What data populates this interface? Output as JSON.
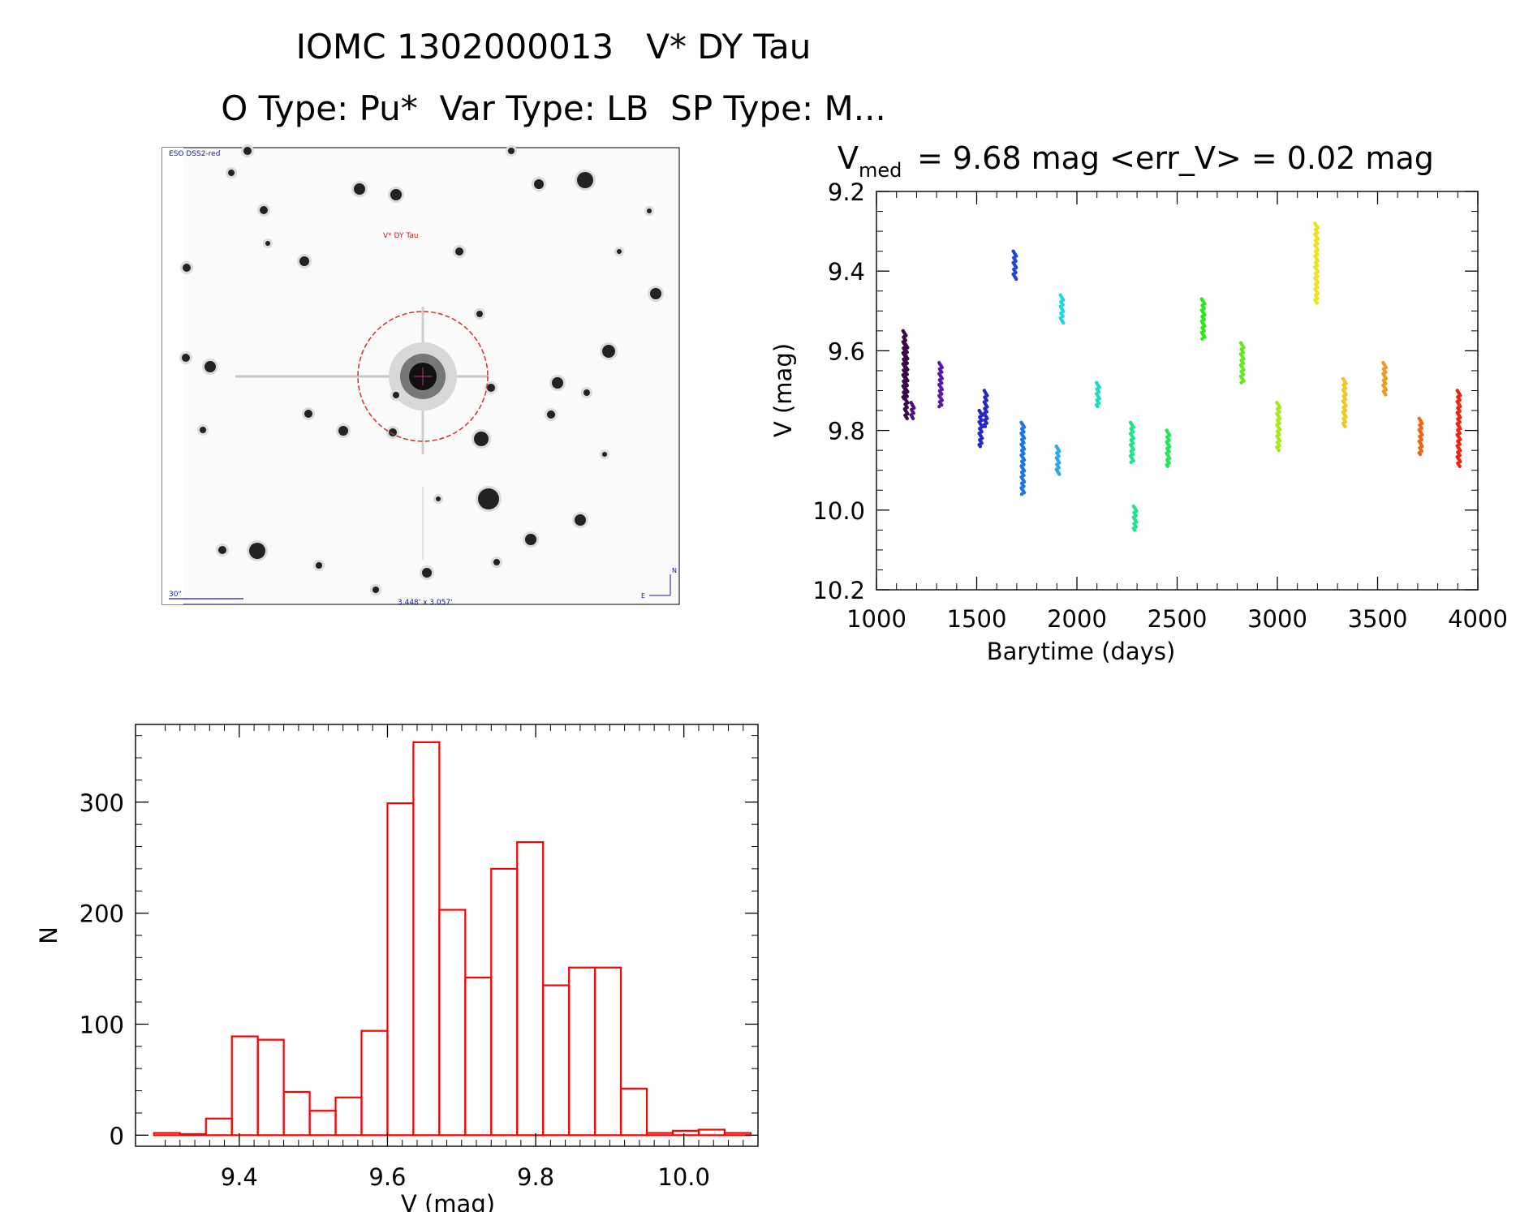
{
  "header": {
    "title": "IOMC 1302000013   V* DY Tau",
    "subtitle": "O Type: Pu*  Var Type: LB  SP Type: M..."
  },
  "image_panel": {
    "survey_label": "ESO DSS2-red",
    "target_label": "V* DY Tau",
    "scale_label": "30\"",
    "fov_label": "3.448' x 3.057'",
    "north_label": "N",
    "east_label": "E",
    "colors": {
      "circle": "#d03030",
      "labels": "#1a1a9a",
      "target_text": "#c02020"
    }
  },
  "chart_data": [
    {
      "type": "scatter",
      "title_main": "V",
      "title_sub": "med",
      "title_rest": "= 9.68 mag <err_V> = 0.02 mag",
      "xlabel": "Barytime (days)",
      "ylabel": "V (mag)",
      "xlim": [
        1000,
        4000
      ],
      "ylim": [
        10.2,
        9.2
      ],
      "y_inverted": true,
      "xticks": [
        1000,
        1500,
        2000,
        2500,
        3000,
        3500,
        4000
      ],
      "yticks": [
        "9.2",
        "9.4",
        "9.6",
        "9.8",
        "10.0",
        "10.2"
      ],
      "clusters": [
        {
          "x": 1140,
          "ymin": 9.55,
          "ymax": 9.72,
          "color": "#3a0848"
        },
        {
          "x": 1148,
          "ymin": 9.58,
          "ymax": 9.77,
          "color": "#3a0848"
        },
        {
          "x": 1180,
          "ymin": 9.73,
          "ymax": 9.77,
          "color": "#48107a"
        },
        {
          "x": 1320,
          "ymin": 9.63,
          "ymax": 9.74,
          "color": "#5a1aa0"
        },
        {
          "x": 1520,
          "ymin": 9.75,
          "ymax": 9.84,
          "color": "#2626c8"
        },
        {
          "x": 1545,
          "ymin": 9.7,
          "ymax": 9.79,
          "color": "#2626c8"
        },
        {
          "x": 1690,
          "ymin": 9.35,
          "ymax": 9.42,
          "color": "#1e46d8"
        },
        {
          "x": 1730,
          "ymin": 9.78,
          "ymax": 9.96,
          "color": "#1a78e6"
        },
        {
          "x": 1905,
          "ymin": 9.84,
          "ymax": 9.91,
          "color": "#2aa8f0"
        },
        {
          "x": 1925,
          "ymin": 9.46,
          "ymax": 9.53,
          "color": "#1ed6e6"
        },
        {
          "x": 2105,
          "ymin": 9.68,
          "ymax": 9.74,
          "color": "#20dcbe"
        },
        {
          "x": 2275,
          "ymin": 9.78,
          "ymax": 9.88,
          "color": "#1ee48c"
        },
        {
          "x": 2290,
          "ymin": 9.99,
          "ymax": 10.05,
          "color": "#1ee48c"
        },
        {
          "x": 2455,
          "ymin": 9.8,
          "ymax": 9.89,
          "color": "#1ee85a"
        },
        {
          "x": 2630,
          "ymin": 9.47,
          "ymax": 9.57,
          "color": "#28e81e"
        },
        {
          "x": 2825,
          "ymin": 9.58,
          "ymax": 9.68,
          "color": "#64e81e"
        },
        {
          "x": 3005,
          "ymin": 9.73,
          "ymax": 9.85,
          "color": "#a8e81e"
        },
        {
          "x": 3195,
          "ymin": 9.28,
          "ymax": 9.48,
          "color": "#e6e61e"
        },
        {
          "x": 3335,
          "ymin": 9.67,
          "ymax": 9.79,
          "color": "#f0c81e"
        },
        {
          "x": 3535,
          "ymin": 9.63,
          "ymax": 9.71,
          "color": "#f09a1e"
        },
        {
          "x": 3715,
          "ymin": 9.77,
          "ymax": 9.86,
          "color": "#ee6414"
        },
        {
          "x": 3905,
          "ymin": 9.7,
          "ymax": 9.89,
          "color": "#e62814"
        }
      ]
    },
    {
      "type": "histogram",
      "xlabel": "V (mag)",
      "ylabel": "N",
      "xlim": [
        9.26,
        10.1
      ],
      "ylim": [
        -10,
        370
      ],
      "xticks": [
        "9.4",
        "9.6",
        "9.8",
        "10.0"
      ],
      "yticks": [
        "0",
        "100",
        "200",
        "300"
      ],
      "bin_width": 0.035,
      "bin_start": 9.285,
      "values": [
        2,
        1,
        15,
        89,
        86,
        39,
        22,
        34,
        94,
        299,
        354,
        203,
        142,
        240,
        264,
        135,
        151,
        151,
        42,
        2,
        4,
        5,
        2
      ],
      "color": "#ff0000"
    }
  ]
}
